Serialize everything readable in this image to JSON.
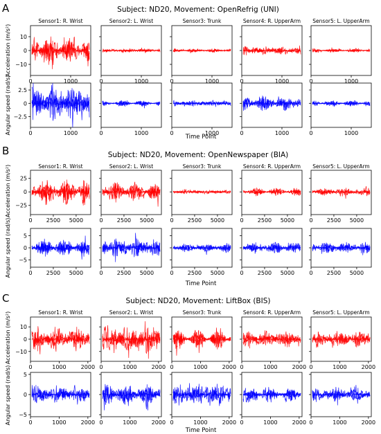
{
  "figure": {
    "panels": [
      {
        "letter": "A",
        "title": "Subject: ND20, Movement: OpenRefrig (UNI)",
        "ylabel_acc": "Acceleration (m/s²)",
        "ylabel_gyro": "Angular speed (rad/s)",
        "xlabel": "Time Point",
        "sensors": [
          "Sensor1: R. Wrist",
          "Sensor2: L. Wrist",
          "Sensor3: Trunk",
          "Sensor4: R. UpperArm",
          "Sensor5: L. UpperArm"
        ]
      },
      {
        "letter": "B",
        "title": "Subject: ND20, Movement: OpenNewspaper (BIA)",
        "ylabel_acc": "Acceleration (m/s²)",
        "ylabel_gyro": "Angular speed (rad/s)",
        "xlabel": "Time Point",
        "sensors": [
          "Sensor1: R. Wrist",
          "Sensor2: L. Wrist",
          "Sensor3: Trunk",
          "Sensor4: R. UpperArm",
          "Sensor5: L. UpperArm"
        ]
      },
      {
        "letter": "C",
        "title": "Subject: ND20, Movement: LiftBox (BIS)",
        "ylabel_acc": "Acceleration (m/s²)",
        "ylabel_gyro": "Angular speed (rad/s)",
        "xlabel": "Time Point",
        "sensors": [
          "Sensor1: R. Wrist",
          "Sensor2: L. Wrist",
          "Sensor3: Trunk",
          "Sensor4: R. UpperArm",
          "Sensor5: L. UpperArm"
        ]
      }
    ]
  },
  "chart_data": [
    {
      "type": "line",
      "panel": "A",
      "title": "Subject: ND20, Movement: OpenRefrig (UNI)",
      "xlabel": "Time Point",
      "colors": {
        "acceleration": "#ff0000",
        "angular_speed": "#0000ff"
      },
      "acceleration": {
        "ylabel": "Acceleration (m/s²)",
        "xlim": [
          0,
          1500
        ],
        "xticks": [
          0,
          1000
        ],
        "ylim": [
          -18,
          18
        ],
        "yticks": [
          -10,
          0,
          10
        ],
        "amplitude_by_sensor": [
          11,
          1.5,
          1.5,
          3.5,
          1.5
        ]
      },
      "angular_speed": {
        "ylabel": "Angular speed (rad/s)",
        "xlim": [
          0,
          1500
        ],
        "xticks": [
          0,
          1000
        ],
        "ylim": [
          -4.5,
          3.8
        ],
        "yticks": [
          -2.5,
          0.0,
          2.5
        ],
        "amplitude_by_sensor": [
          3.5,
          0.6,
          0.6,
          1.5,
          0.6
        ]
      },
      "sensors": [
        "Sensor1: R. Wrist",
        "Sensor2: L. Wrist",
        "Sensor3: Trunk",
        "Sensor4: R. UpperArm",
        "Sensor5: L. UpperArm"
      ]
    },
    {
      "type": "line",
      "panel": "B",
      "title": "Subject: ND20, Movement: OpenNewspaper (BIA)",
      "xlabel": "Time Point",
      "colors": {
        "acceleration": "#ff0000",
        "angular_speed": "#0000ff"
      },
      "acceleration": {
        "ylabel": "Acceleration (m/s²)",
        "xlim": [
          0,
          6600
        ],
        "xticks": [
          0,
          2500,
          5000
        ],
        "ylim": [
          -42,
          40
        ],
        "yticks": [
          -25,
          0,
          25
        ],
        "amplitude_by_sensor": [
          25,
          20,
          4,
          8,
          8
        ]
      },
      "angular_speed": {
        "ylabel": "Angular speed (rad/s)",
        "xlim": [
          0,
          6600
        ],
        "xticks": [
          0,
          2500,
          5000
        ],
        "ylim": [
          -8,
          8
        ],
        "yticks": [
          -5,
          0,
          5
        ],
        "amplitude_by_sensor": [
          4,
          4,
          2,
          2.5,
          2.5
        ]
      },
      "sensors": [
        "Sensor1: R. Wrist",
        "Sensor2: L. Wrist",
        "Sensor3: Trunk",
        "Sensor4: R. UpperArm",
        "Sensor5: L. UpperArm"
      ]
    },
    {
      "type": "line",
      "panel": "C",
      "title": "Subject: ND20, Movement: LiftBox (BIS)",
      "xlabel": "Time Point",
      "colors": {
        "acceleration": "#ff0000",
        "angular_speed": "#0000ff"
      },
      "acceleration": {
        "ylabel": "Acceleration (m/s²)",
        "xlim": [
          0,
          2100
        ],
        "xticks": [
          0,
          1000,
          2000
        ],
        "ylim": [
          -18,
          18
        ],
        "yticks": [
          -10,
          0,
          10
        ],
        "amplitude_by_sensor": [
          11,
          12,
          9,
          7,
          7
        ]
      },
      "angular_speed": {
        "ylabel": "Angular speed (rad/s)",
        "xlim": [
          0,
          2100
        ],
        "xticks": [
          0,
          1000,
          2000
        ],
        "ylim": [
          -5.5,
          5.5
        ],
        "yticks": [
          -5,
          0,
          5
        ],
        "amplitude_by_sensor": [
          2.5,
          3,
          3,
          2,
          2
        ]
      },
      "sensors": [
        "Sensor1: R. Wrist",
        "Sensor2: L. Wrist",
        "Sensor3: Trunk",
        "Sensor4: R. UpperArm",
        "Sensor5: L. UpperArm"
      ]
    }
  ]
}
